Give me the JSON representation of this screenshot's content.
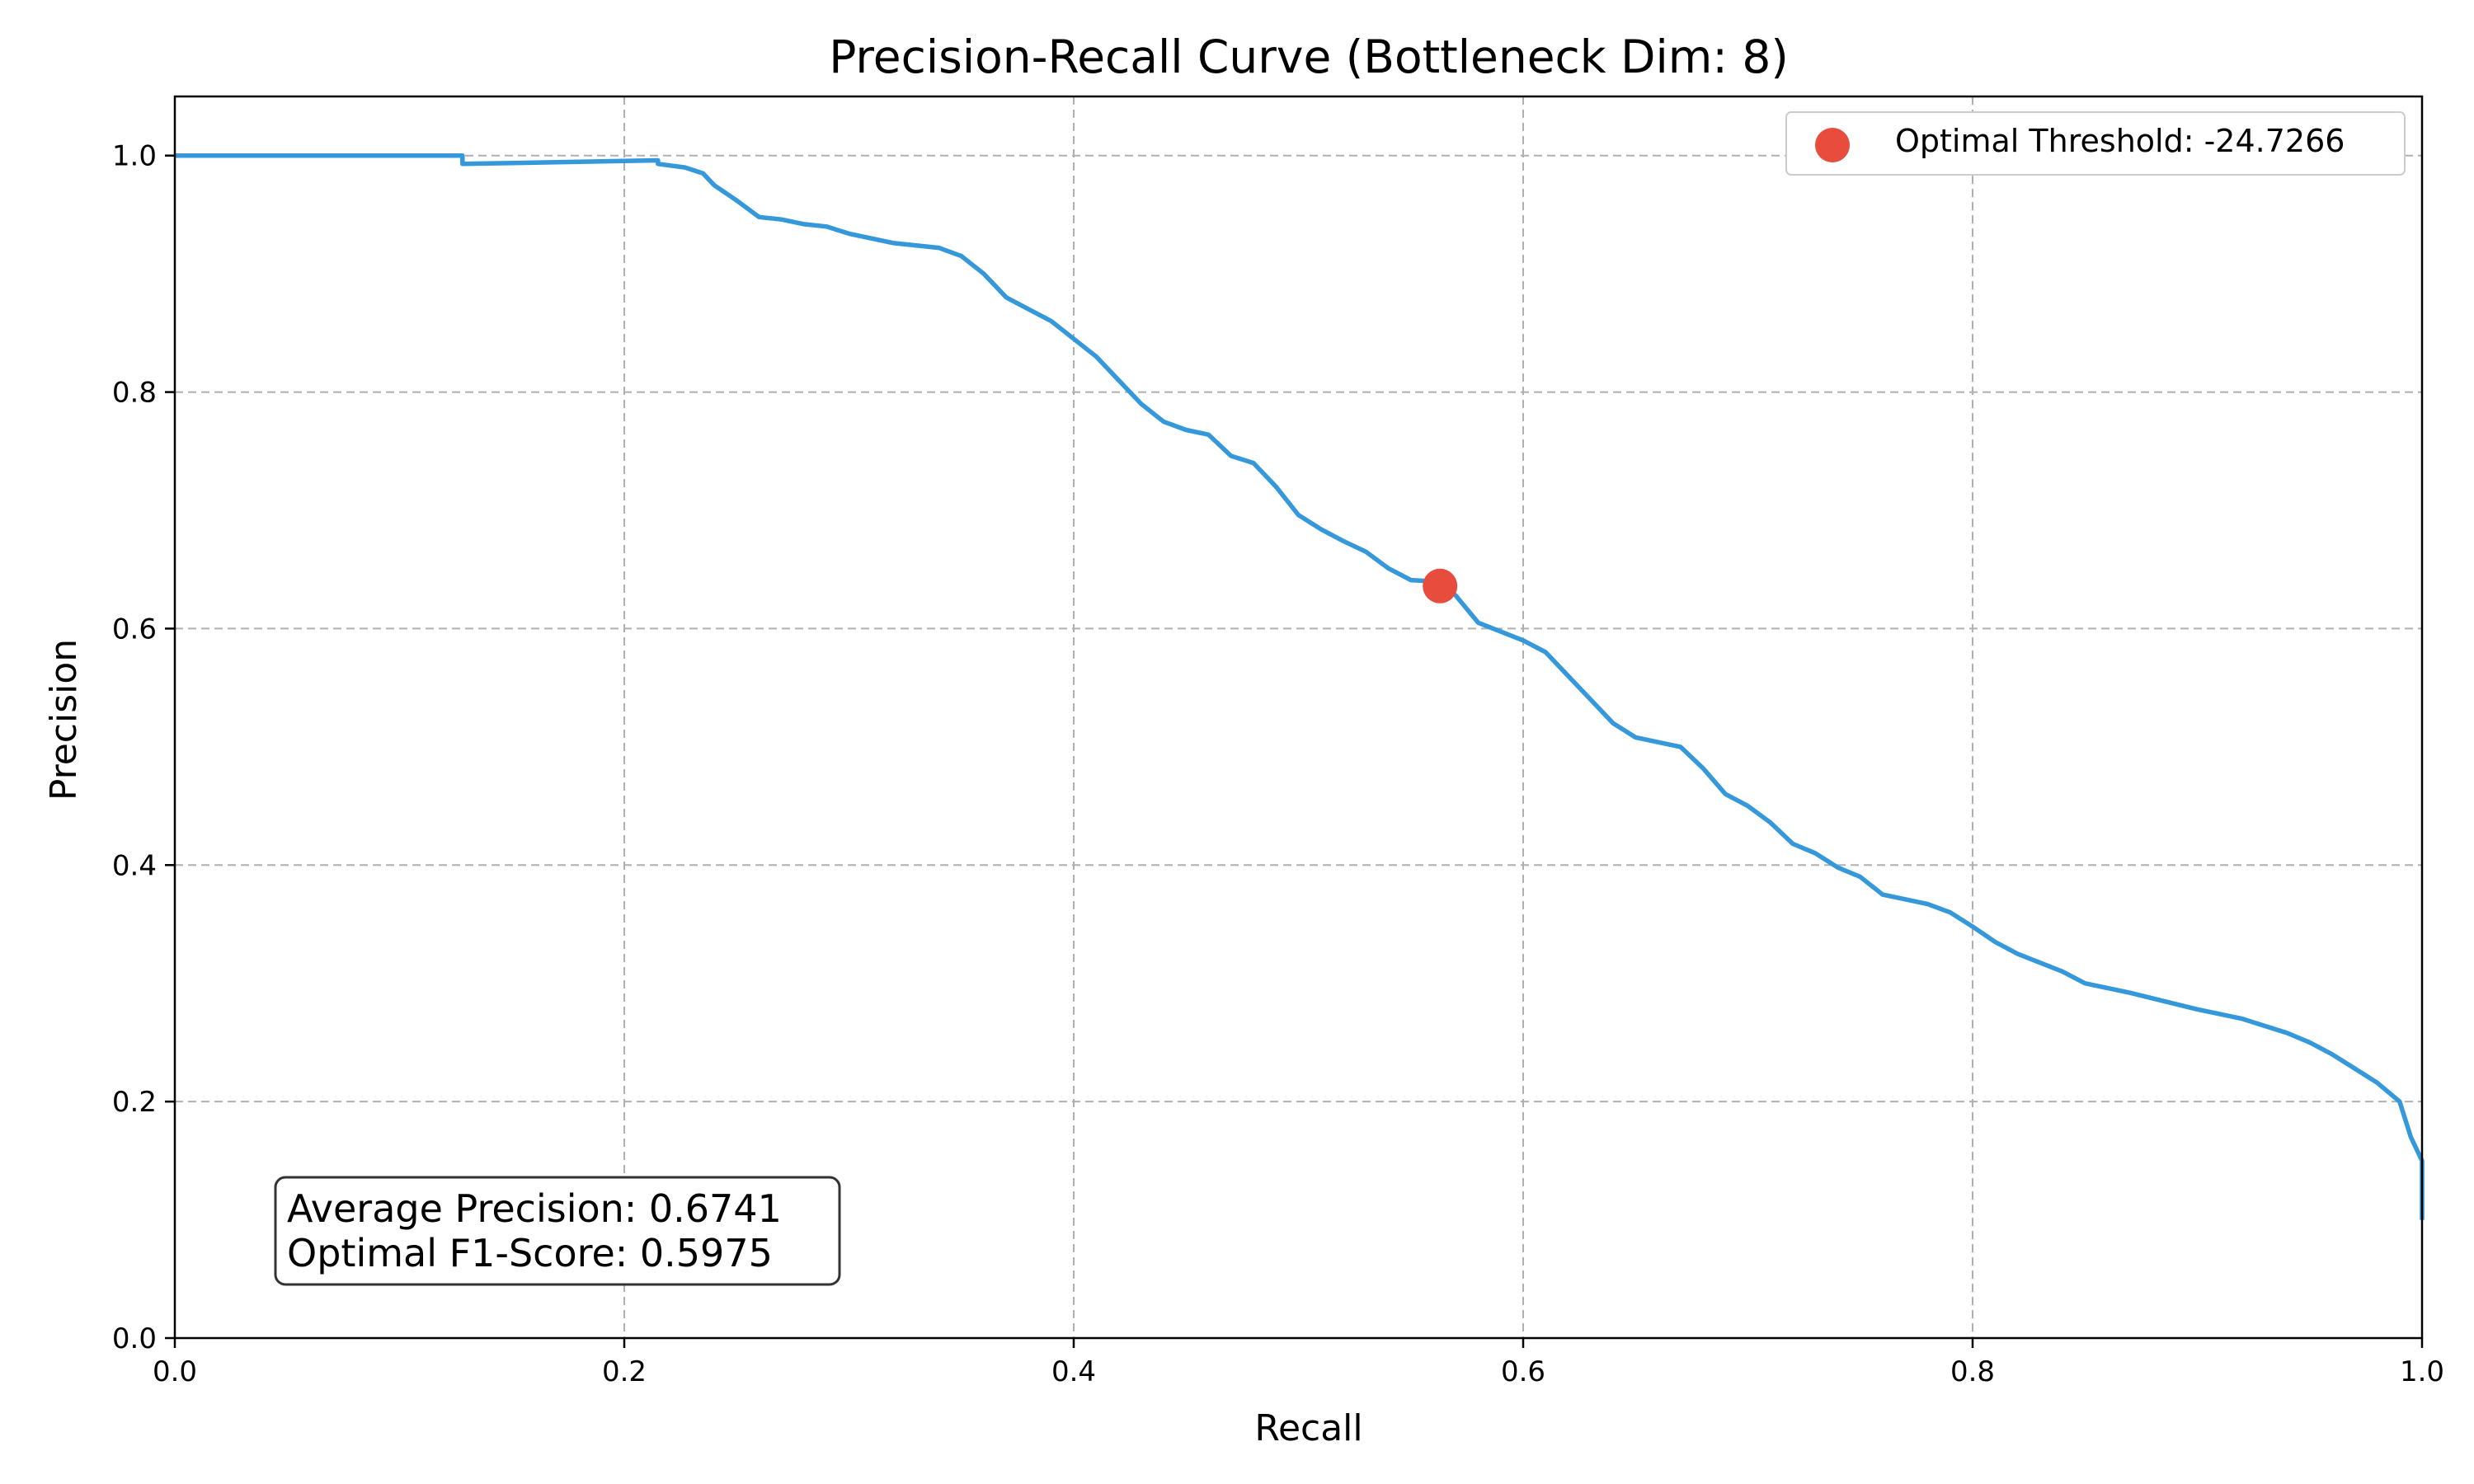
{
  "chart_data": {
    "type": "line",
    "title": "Precision-Recall Curve (Bottleneck Dim: 8)",
    "xlabel": "Recall",
    "ylabel": "Precision",
    "xlim": [
      0.0,
      1.0
    ],
    "ylim": [
      0.0,
      1.05
    ],
    "xticks": [
      "0.0",
      "0.2",
      "0.4",
      "0.6",
      "0.8",
      "1.0"
    ],
    "yticks": [
      "0.0",
      "0.2",
      "0.4",
      "0.6",
      "0.8",
      "1.0"
    ],
    "grid": true,
    "legend_position": "top-right",
    "colors": {
      "curve": "#3498db",
      "optimal_point": "#e74c3c"
    },
    "series": [
      {
        "x": [
          0.0,
          0.128,
          0.128,
          0.16,
          0.215,
          0.215,
          0.227,
          0.235,
          0.24,
          0.25,
          0.26,
          0.27,
          0.28,
          0.29,
          0.3,
          0.32,
          0.34,
          0.35,
          0.36,
          0.37,
          0.38,
          0.39,
          0.4,
          0.41,
          0.42,
          0.43,
          0.44,
          0.45,
          0.46,
          0.47,
          0.48,
          0.49,
          0.5,
          0.51,
          0.52,
          0.53,
          0.54,
          0.55,
          0.56,
          0.565,
          0.57,
          0.58,
          0.6,
          0.61,
          0.62,
          0.63,
          0.64,
          0.65,
          0.67,
          0.68,
          0.69,
          0.7,
          0.71,
          0.72,
          0.73,
          0.74,
          0.75,
          0.76,
          0.78,
          0.79,
          0.8,
          0.81,
          0.82,
          0.84,
          0.85,
          0.87,
          0.9,
          0.92,
          0.94,
          0.95,
          0.96,
          0.97,
          0.98,
          0.99,
          0.995,
          1.0,
          1.0
        ],
        "y": [
          1.0,
          1.0,
          0.993,
          0.994,
          0.996,
          0.993,
          0.99,
          0.985,
          0.975,
          0.962,
          0.948,
          0.946,
          0.942,
          0.94,
          0.934,
          0.926,
          0.922,
          0.915,
          0.9,
          0.88,
          0.87,
          0.86,
          0.845,
          0.83,
          0.81,
          0.79,
          0.775,
          0.768,
          0.764,
          0.746,
          0.74,
          0.72,
          0.696,
          0.684,
          0.674,
          0.665,
          0.651,
          0.641,
          0.64,
          0.636,
          0.628,
          0.605,
          0.59,
          0.58,
          0.56,
          0.54,
          0.52,
          0.508,
          0.5,
          0.482,
          0.46,
          0.45,
          0.436,
          0.418,
          0.41,
          0.398,
          0.39,
          0.375,
          0.367,
          0.36,
          0.348,
          0.335,
          0.325,
          0.31,
          0.3,
          0.292,
          0.278,
          0.27,
          0.258,
          0.25,
          0.24,
          0.228,
          0.216,
          0.2,
          0.17,
          0.15,
          0.1
        ]
      }
    ],
    "optimal_point": {
      "x": 0.563,
      "y": 0.636,
      "label": "Optimal Threshold: -24.7266"
    },
    "annotation": {
      "line1": "Average Precision: 0.6741",
      "line2": "Optimal F1-Score: 0.5975"
    }
  }
}
